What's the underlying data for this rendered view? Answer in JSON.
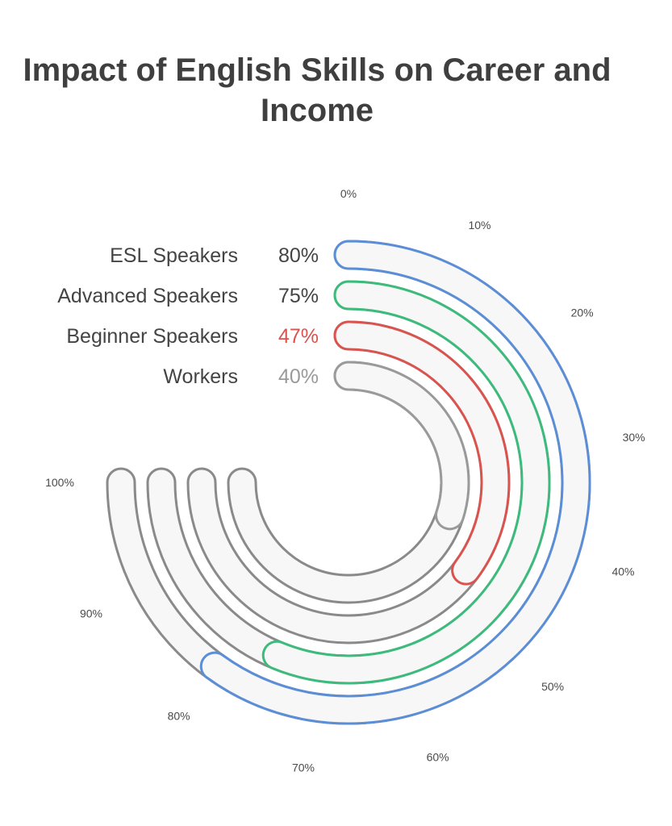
{
  "chart_data": {
    "type": "radial-bar",
    "title": "Impact of English Skills on Career and Income",
    "max": 100,
    "ticks": [
      {
        "value": 0,
        "label": "0%"
      },
      {
        "value": 10,
        "label": "10%"
      },
      {
        "value": 20,
        "label": "20%"
      },
      {
        "value": 30,
        "label": "30%"
      },
      {
        "value": 40,
        "label": "40%"
      },
      {
        "value": 50,
        "label": "50%"
      },
      {
        "value": 60,
        "label": "60%"
      },
      {
        "value": 70,
        "label": "70%"
      },
      {
        "value": 80,
        "label": "80%"
      },
      {
        "value": 90,
        "label": "90%"
      },
      {
        "value": 100,
        "label": "100%"
      }
    ],
    "series": [
      {
        "name": "ESL Speakers",
        "value": 80,
        "value_label": "80%",
        "color": "#5b8ed6",
        "value_color": "#444444"
      },
      {
        "name": "Advanced Speakers",
        "value": 75,
        "value_label": "75%",
        "color": "#3dbb7c",
        "value_color": "#444444"
      },
      {
        "name": "Beginner Speakers",
        "value": 47,
        "value_label": "47%",
        "color": "#d9534f",
        "value_color": "#d9534f"
      },
      {
        "name": "Workers",
        "value": 40,
        "value_label": "40%",
        "color": "#9a9a9a",
        "value_color": "#9a9a9a"
      }
    ],
    "track_color": "#f7f7f7",
    "track_outline_color": "#8a8a8a"
  }
}
